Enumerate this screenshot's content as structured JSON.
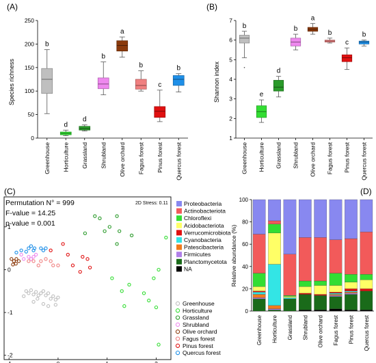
{
  "panels": [
    {
      "id": "A",
      "label": "(A)",
      "ylabel": "Species richness"
    },
    {
      "id": "B",
      "label": "(B)",
      "ylabel": "Shannon index"
    },
    {
      "id": "C",
      "label": "(C)"
    },
    {
      "id": "D",
      "label": "(D)",
      "ylabel": "Relative abundance (%)"
    }
  ],
  "colors": {
    "Greenhouse": "#bfbfbf",
    "Horticulture": "#33dd33",
    "Grassland": "#2a9a2a",
    "Shrubland": "#ee88ee",
    "Olive orchard": "#8b3a0c",
    "Fagus forest": "#f08080",
    "Pinus forest": "#e01010",
    "Quercus forest": "#1e8fe8"
  },
  "nmds": {
    "permutation": "Permutation N° = 999",
    "f_value": "F-value = 14.25",
    "p_value": "p-value = 0.001",
    "stress": "2D Stress: 0.11"
  },
  "chart_data": [
    {
      "type": "box",
      "panel": "A",
      "ylabel": "Species richness",
      "ylim": [
        0,
        250
      ],
      "yticks": [
        0,
        50,
        100,
        150,
        200,
        250
      ],
      "categories": [
        "Greenhouse",
        "Horticulture",
        "Grassland",
        "Shrubland",
        "Olive orchard",
        "Fagus forest",
        "Pinus forest",
        "Quercus forest"
      ],
      "boxes": [
        {
          "min": 52,
          "q1": 95,
          "median": 125,
          "q3": 148,
          "max": 188,
          "letter": "b"
        },
        {
          "min": 5,
          "q1": 7,
          "median": 10,
          "q3": 13,
          "max": 17,
          "letter": "d"
        },
        {
          "min": 15,
          "q1": 17,
          "median": 20,
          "q3": 25,
          "max": 28,
          "letter": "d"
        },
        {
          "min": 92,
          "q1": 105,
          "median": 115,
          "q3": 128,
          "max": 162,
          "letter": "b"
        },
        {
          "min": 172,
          "q1": 185,
          "median": 197,
          "q3": 207,
          "max": 215,
          "letter": "a"
        },
        {
          "min": 100,
          "q1": 104,
          "median": 112,
          "q3": 125,
          "max": 143,
          "letter": "b"
        },
        {
          "min": 35,
          "q1": 44,
          "median": 57,
          "q3": 67,
          "max": 102,
          "letter": "c"
        },
        {
          "min": 98,
          "q1": 112,
          "median": 125,
          "q3": 133,
          "max": 137,
          "letter": "b"
        }
      ]
    },
    {
      "type": "box",
      "panel": "B",
      "ylabel": "Shannon index",
      "ylim": [
        1,
        7
      ],
      "yticks": [
        1,
        2,
        3,
        4,
        5,
        6,
        7
      ],
      "categories": [
        "Greenhouse",
        "Horticulture",
        "Grassland",
        "Shrubland",
        "Olive orchard",
        "Fagus forest",
        "Pinus forest",
        "Quercus forest"
      ],
      "boxes": [
        {
          "min": 5.1,
          "q1": 5.85,
          "median": 6.1,
          "q3": 6.25,
          "max": 6.45,
          "outlier": 4.6,
          "letter": "b"
        },
        {
          "min": 1.8,
          "q1": 2.05,
          "median": 2.35,
          "q3": 2.65,
          "max": 2.95,
          "letter": "e"
        },
        {
          "min": 3.1,
          "q1": 3.4,
          "median": 3.6,
          "q3": 3.95,
          "max": 4.15,
          "letter": "d"
        },
        {
          "min": 5.5,
          "q1": 5.7,
          "median": 5.9,
          "q3": 6.1,
          "max": 6.3,
          "letter": "b"
        },
        {
          "min": 6.3,
          "q1": 6.45,
          "median": 6.55,
          "q3": 6.65,
          "max": 6.85,
          "letter": "a"
        },
        {
          "min": 5.85,
          "q1": 5.9,
          "median": 5.95,
          "q3": 6.0,
          "max": 6.1,
          "letter": "b"
        },
        {
          "min": 4.5,
          "q1": 4.9,
          "median": 5.1,
          "q3": 5.25,
          "max": 5.6,
          "letter": "c"
        },
        {
          "min": 5.7,
          "q1": 5.8,
          "median": 5.9,
          "q3": 5.95,
          "max": 6.0,
          "letter": "b"
        }
      ]
    },
    {
      "type": "scatter",
      "panel": "C",
      "xlim": [
        -1.1,
        2.3
      ],
      "ylim": [
        -2.1,
        1.7
      ],
      "xticks": [
        -1,
        0,
        1,
        2
      ],
      "yticks": [
        -2,
        -1,
        0,
        1
      ],
      "series": [
        {
          "name": "Greenhouse",
          "points": [
            [
              -0.65,
              -0.5
            ],
            [
              -0.6,
              -0.55
            ],
            [
              -0.55,
              -0.48
            ],
            [
              -0.5,
              -0.58
            ],
            [
              -0.45,
              -0.52
            ],
            [
              -0.4,
              -0.6
            ],
            [
              -0.35,
              -0.55
            ],
            [
              -0.3,
              -0.5
            ],
            [
              -0.25,
              -0.6
            ],
            [
              -0.2,
              -0.55
            ],
            [
              -0.15,
              -0.68
            ],
            [
              -0.1,
              -0.62
            ],
            [
              -0.05,
              -0.7
            ],
            [
              -0.5,
              -0.75
            ],
            [
              -0.3,
              -0.8
            ],
            [
              -0.2,
              -0.85
            ],
            [
              0.0,
              -0.65
            ],
            [
              -0.7,
              -0.62
            ],
            [
              -0.42,
              -0.68
            ],
            [
              -0.05,
              -0.82
            ]
          ]
        },
        {
          "name": "Horticulture",
          "points": [
            [
              1.1,
              -0.2
            ],
            [
              1.3,
              -0.5
            ],
            [
              1.45,
              -0.35
            ],
            [
              1.35,
              -0.85
            ],
            [
              1.75,
              -0.55
            ],
            [
              1.85,
              -0.72
            ],
            [
              1.95,
              -0.2
            ],
            [
              2.0,
              -0.88
            ],
            [
              2.05,
              0.0
            ],
            [
              2.2,
              0.75
            ],
            [
              2.05,
              -1.75
            ]
          ]
        },
        {
          "name": "Grassland",
          "points": [
            [
              0.55,
              0.85
            ],
            [
              0.75,
              1.25
            ],
            [
              0.85,
              1.2
            ],
            [
              0.95,
              0.9
            ],
            [
              1.05,
              1.0
            ],
            [
              1.25,
              0.9
            ],
            [
              1.5,
              0.8
            ],
            [
              1.2,
              1.25
            ],
            [
              1.2,
              0.6
            ]
          ]
        },
        {
          "name": "Shrubland",
          "points": [
            [
              -0.75,
              0.35
            ],
            [
              -0.7,
              0.25
            ],
            [
              -0.6,
              0.3
            ],
            [
              -0.55,
              0.25
            ],
            [
              -0.5,
              0.3
            ],
            [
              -0.45,
              0.35
            ]
          ]
        },
        {
          "name": "Olive orchard",
          "points": [
            [
              -0.95,
              0.25
            ],
            [
              -0.9,
              0.2
            ],
            [
              -0.85,
              0.25
            ],
            [
              -0.92,
              0.12
            ],
            [
              -0.86,
              0.14
            ],
            [
              -0.8,
              0.2
            ]
          ]
        },
        {
          "name": "Fagus forest",
          "points": [
            [
              -0.5,
              0.2
            ],
            [
              -0.4,
              0.1
            ],
            [
              -0.35,
              0.2
            ],
            [
              -0.25,
              0.25
            ],
            [
              -0.15,
              0.2
            ],
            [
              -0.1,
              0.1
            ],
            [
              0.0,
              0.1
            ],
            [
              -0.6,
              0.2
            ]
          ]
        },
        {
          "name": "Pinus forest",
          "points": [
            [
              -0.15,
              0.45
            ],
            [
              0.1,
              0.6
            ],
            [
              0.2,
              0.35
            ],
            [
              0.3,
              0.1
            ],
            [
              0.5,
              0.3
            ],
            [
              0.6,
              0.25
            ],
            [
              0.45,
              -0.05
            ],
            [
              0.65,
              0.05
            ]
          ]
        },
        {
          "name": "Quercus forest",
          "points": [
            [
              -0.85,
              0.4
            ],
            [
              -0.75,
              0.45
            ],
            [
              -0.65,
              0.42
            ],
            [
              -0.55,
              0.55
            ],
            [
              -0.5,
              0.45
            ],
            [
              -0.48,
              0.5
            ],
            [
              -0.35,
              0.5
            ],
            [
              -0.3,
              0.45
            ],
            [
              -0.25,
              0.5
            ],
            [
              -0.6,
              0.5
            ]
          ]
        }
      ]
    },
    {
      "type": "stacked_bar",
      "panel": "D",
      "ylabel": "Relative abundance (%)",
      "ylim": [
        0,
        100
      ],
      "yticks": [
        0,
        20,
        40,
        60,
        80,
        100
      ],
      "categories": [
        "Greenhouse",
        "Horticulture",
        "Grassland",
        "Shrubland",
        "Olive orchard",
        "Fagus forest",
        "Pinus forest",
        "Quercus forest"
      ],
      "series": [
        {
          "name": "NA",
          "color": "#000000",
          "values": [
            0,
            0,
            0,
            1,
            1,
            2,
            1,
            1
          ]
        },
        {
          "name": "Planctomycetota",
          "color": "#1a6b1a",
          "values": [
            11,
            1,
            11,
            14,
            13,
            11,
            14,
            17
          ]
        },
        {
          "name": "Firmicutes",
          "color": "#b07fe8",
          "values": [
            1,
            1,
            0,
            0,
            0,
            1,
            1,
            0
          ]
        },
        {
          "name": "Patescibacteria",
          "color": "#f07a1c",
          "values": [
            3,
            3,
            0,
            0,
            0,
            1,
            1,
            0
          ]
        },
        {
          "name": "Cyanobacteria",
          "color": "#33e5e5",
          "values": [
            2,
            37,
            1,
            0,
            0,
            1,
            1,
            0
          ]
        },
        {
          "name": "Verrucomicrobiota",
          "color": "#e01010",
          "values": [
            1,
            0,
            0,
            1,
            1,
            1,
            2,
            2
          ]
        },
        {
          "name": "Acidobacteriota",
          "color": "#ffff66",
          "values": [
            4,
            28,
            1,
            6,
            8,
            6,
            6,
            8
          ]
        },
        {
          "name": "Chloroflexi",
          "color": "#33dd33",
          "values": [
            12,
            8,
            1,
            5,
            4,
            11,
            7,
            5
          ]
        },
        {
          "name": "Actinobacteriota",
          "color": "#f25a5a",
          "values": [
            35,
            3,
            37,
            39,
            39,
            30,
            32,
            38
          ]
        },
        {
          "name": "Proteobacteria",
          "color": "#8888f0",
          "values": [
            31,
            19,
            49,
            34,
            34,
            36,
            35,
            29
          ]
        }
      ]
    }
  ]
}
